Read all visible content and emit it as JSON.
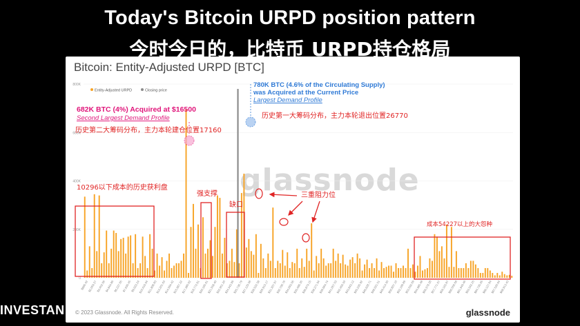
{
  "headline": {
    "en": "Today's Bitcoin URPD position pattern",
    "zh": "今时今日的，比特币 URPD持仓格局"
  },
  "card": {
    "title": "Bitcoin: Entity-Adjusted URPD [BTC]",
    "watermark": "glassnode",
    "copyright": "© 2023 Glassnode. All Rights Reserved.",
    "brand": "glassnode"
  },
  "footer_brand": "INVESTAN",
  "legend": {
    "urpd_label": "Entity-Adjusted URPD",
    "price_label": "Closing price"
  },
  "annotations": {
    "peak_16500": "682K BTC (4%) Acquired at $16500",
    "peak_16500_sub": "Second Largest Demand Profile",
    "current_price": "780K BTC (4.6% of the Circulating Supply)",
    "current_price_2": "was Acquired at the Current Price",
    "current_price_sub": "Largest Demand Profile",
    "zh_second_dist": "历史第二大筹码分布，主力本轮建仓位置17160",
    "zh_first_dist": "历史第一大筹码分布，主力本轮退出位置26770",
    "zh_profit": "10296以下成本的历史获利盘",
    "zh_support": "强支撑",
    "zh_gap": "缺口",
    "zh_triple_resistance": "三重阻力位",
    "zh_big_bagholders": "成本54227以上的大怨种"
  },
  "colors": {
    "bar": "#f7a325",
    "price_line": "#8c8c8c",
    "magenta": "#e0157a",
    "blue": "#2f7ad6",
    "red": "#e02424"
  },
  "chart_data": {
    "type": "bar",
    "title": "Bitcoin: Entity-Adjusted URPD [BTC]",
    "xlabel": "",
    "ylabel": "",
    "ylim": [
      0,
      800000
    ],
    "yticks": [
      "0",
      "200K",
      "400K",
      "600K",
      "800K"
    ],
    "xtick_labels": [
      "$866.42",
      "$2,059.27",
      "$3,452.06",
      "$4,844.86",
      "$6,237.65",
      "$7,630.45",
      "$9,023.24",
      "$10,416.04",
      "$11,808.83",
      "$13,201.63",
      "$14,594.42",
      "$15,987.22",
      "$17,380.02",
      "$18,772.81",
      "$20,165.61",
      "$21,558.40",
      "$22,951.20",
      "$24,343.99",
      "$25,736.79",
      "$27,129.58",
      "$28,522.38",
      "$29,915.17",
      "$31,307.97",
      "$32,700.76",
      "$34,093.56",
      "$35,486.35",
      "$36,879.15",
      "$38,271.94",
      "$39,664.74",
      "$41,057.53",
      "$42,450.33",
      "$43,843.12",
      "$45,235.92",
      "$46,628.71",
      "$48,021.51",
      "$49,414.30",
      "$50,807.10",
      "$52,199.89",
      "$53,592.69",
      "$54,985.48",
      "$56,378.28",
      "$57,771.07",
      "$59,163.87",
      "$60,556.66",
      "$61,949.46",
      "$63,342.25",
      "$64,735.05",
      "$66,127.84",
      "$67,520.64",
      "$68,913.43"
    ],
    "series": [
      {
        "name": "Entity-Adjusted URPD",
        "values": [
          335000,
          30000,
          130000,
          40000,
          345000,
          110000,
          340000,
          60000,
          105000,
          195000,
          60000,
          120000,
          195000,
          185000,
          110000,
          160000,
          165000,
          100000,
          170000,
          175000,
          60000,
          180000,
          40000,
          60000,
          170000,
          90000,
          40000,
          180000,
          120000,
          30000,
          100000,
          50000,
          85000,
          30000,
          70000,
          100000,
          40000,
          50000,
          60000,
          60000,
          70000,
          100000,
          695000,
          20000,
          210000,
          305000,
          120000,
          220000,
          40000,
          250000,
          100000,
          120000,
          155000,
          90000,
          210000,
          340000,
          330000,
          100000,
          165000,
          60000,
          70000,
          120000,
          65000,
          200000,
          60000,
          350000,
          430000,
          125000,
          160000,
          110000,
          95000,
          180000,
          20000,
          140000,
          80000,
          40000,
          100000,
          70000,
          290000,
          40000,
          70000,
          60000,
          115000,
          50000,
          105000,
          40000,
          65000,
          60000,
          120000,
          40000,
          80000,
          45000,
          120000,
          70000,
          225000,
          30000,
          90000,
          60000,
          120000,
          80000,
          50000,
          60000,
          60000,
          120000,
          70000,
          100000,
          60000,
          95000,
          55000,
          50000,
          75000,
          85000,
          60000,
          100000,
          80000,
          30000,
          55000,
          75000,
          40000,
          60000,
          40000,
          80000,
          30000,
          65000,
          40000,
          45000,
          50000,
          50000,
          25000,
          60000,
          40000,
          40000,
          50000,
          40000,
          120000,
          40000,
          55000,
          25000,
          50000,
          90000,
          30000,
          35000,
          40000,
          80000,
          70000,
          180000,
          170000,
          110000,
          130000,
          80000,
          220000,
          45000,
          210000,
          45000,
          110000,
          40000,
          40000,
          40000,
          60000,
          40000,
          70000,
          70000,
          55000,
          40000,
          20000,
          20000,
          40000,
          40000,
          30000,
          20000,
          10000,
          20000,
          10000,
          25000,
          15000,
          10000,
          12000,
          8000
        ]
      },
      {
        "name": "Closing price",
        "price": 26770,
        "peak_value": 780000
      }
    ]
  }
}
